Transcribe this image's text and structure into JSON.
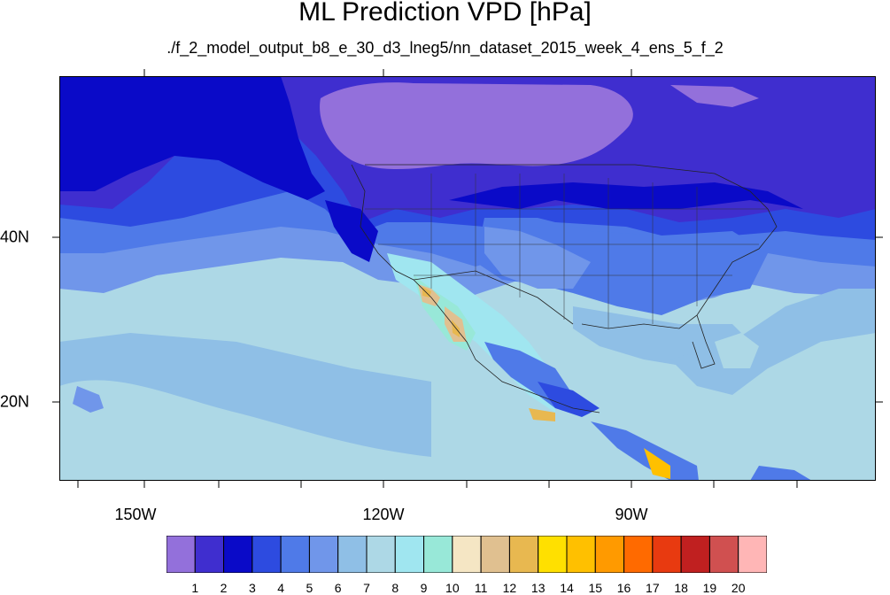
{
  "title": "ML Prediction VPD [hPa]",
  "subtitle": "./f_2_model_output_b8_e_30_d3_lneg5/nn_dataset_2015_week_4_ens_5_f_2",
  "lon_labels": [
    "150W",
    "120W",
    "90W"
  ],
  "lat_labels": [
    "40N",
    "20N"
  ],
  "colorbar": {
    "labels": [
      "1",
      "2",
      "3",
      "4",
      "5",
      "6",
      "7",
      "8",
      "9",
      "10",
      "11",
      "12",
      "13",
      "14",
      "15",
      "16",
      "17",
      "18",
      "19",
      "20"
    ],
    "colors": [
      "#9370db",
      "#3f2ecf",
      "#0a0ac8",
      "#2d4be0",
      "#4f7ae8",
      "#7096ea",
      "#8fbfe6",
      "#add8e6",
      "#a0e6f0",
      "#98e8d8",
      "#f5e6c4",
      "#e0c090",
      "#e8b850",
      "#ffe000",
      "#ffc000",
      "#ff9a00",
      "#ff6a00",
      "#e83a10",
      "#c02020",
      "#d05050",
      "#ffb6b6"
    ]
  },
  "map_colors": {
    "lavender": "#9370db",
    "indigo": "#3f2ecf",
    "deep_blue": "#0a0ac8",
    "blue": "#2d4be0",
    "mid_blue": "#4f7ae8",
    "light_blue": "#7096ea",
    "pale_blue": "#8fbfe6",
    "powder": "#add8e6",
    "cyan": "#a0e6f0",
    "aqua": "#98e8d8",
    "tan": "#e0c090",
    "orange": "#e8b850",
    "yellow": "#ffc000"
  }
}
